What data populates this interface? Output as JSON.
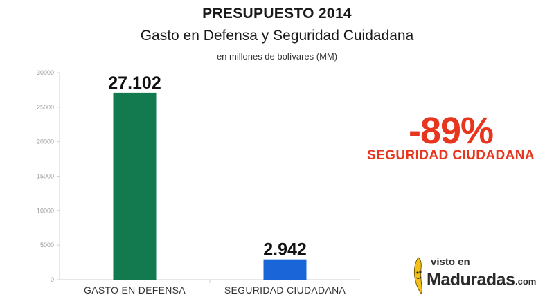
{
  "header": {
    "title": "PRESUPUESTO 2014",
    "subtitle": "Gasto en Defensa y Seguridad Cuidadana",
    "units": "en millones de bolívares (MM)"
  },
  "chart_data": {
    "type": "bar",
    "categories": [
      "GASTO EN DEFENSA",
      "SEGURIDAD CIUDADANA"
    ],
    "values": [
      27102,
      2942
    ],
    "value_labels": [
      "27.102",
      "2.942"
    ],
    "bar_colors": [
      "#137a4f",
      "#1a66d9"
    ],
    "ylim": [
      0,
      30000
    ],
    "yticks": [
      0,
      5000,
      10000,
      15000,
      20000,
      25000,
      30000
    ],
    "ytick_labels": [
      "0",
      "5000",
      "10000",
      "15000",
      "20000",
      "25000",
      "30000"
    ],
    "grid": false,
    "legend": "none"
  },
  "callout": {
    "percent": "-89%",
    "label": "SEGURIDAD CIUDADANA",
    "color": "#e8351e"
  },
  "watermark": {
    "line1": "visto en",
    "line2": "Maduradas",
    "line3": ".com"
  }
}
